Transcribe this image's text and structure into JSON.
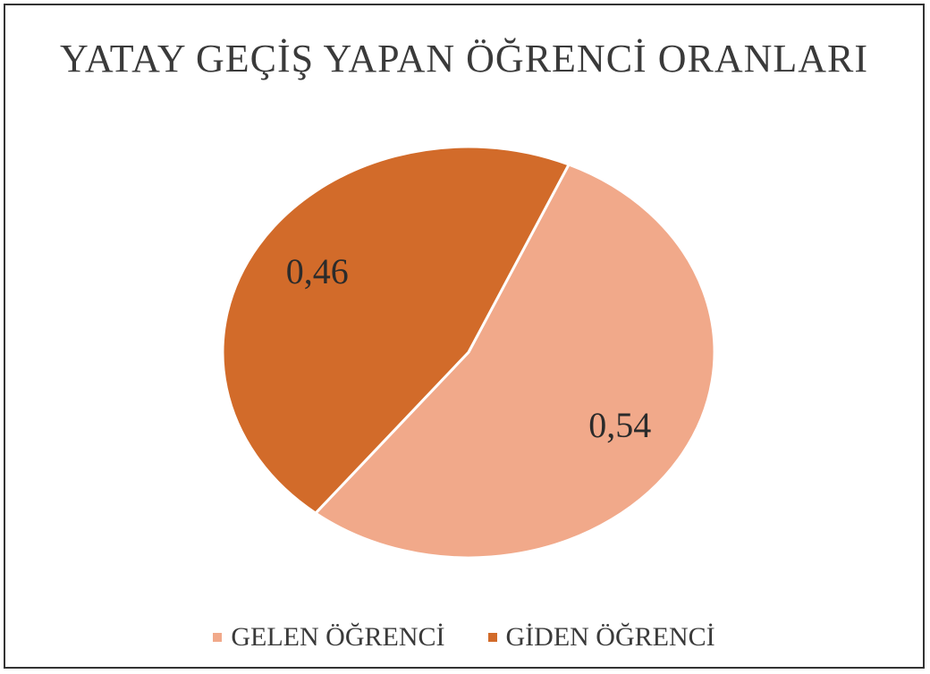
{
  "chart_data": {
    "type": "pie",
    "title": "YATAY GEÇİŞ YAPAN ÖĞRENCİ ORANLARI",
    "categories": [
      "GELEN ÖĞRENCİ",
      "GİDEN ÖĞRENCİ"
    ],
    "values": [
      0.54,
      0.46
    ],
    "data_labels": [
      "0,54",
      "0,46"
    ],
    "colors": [
      "#F1A98A",
      "#D26B2A"
    ],
    "legend_position": "bottom"
  }
}
